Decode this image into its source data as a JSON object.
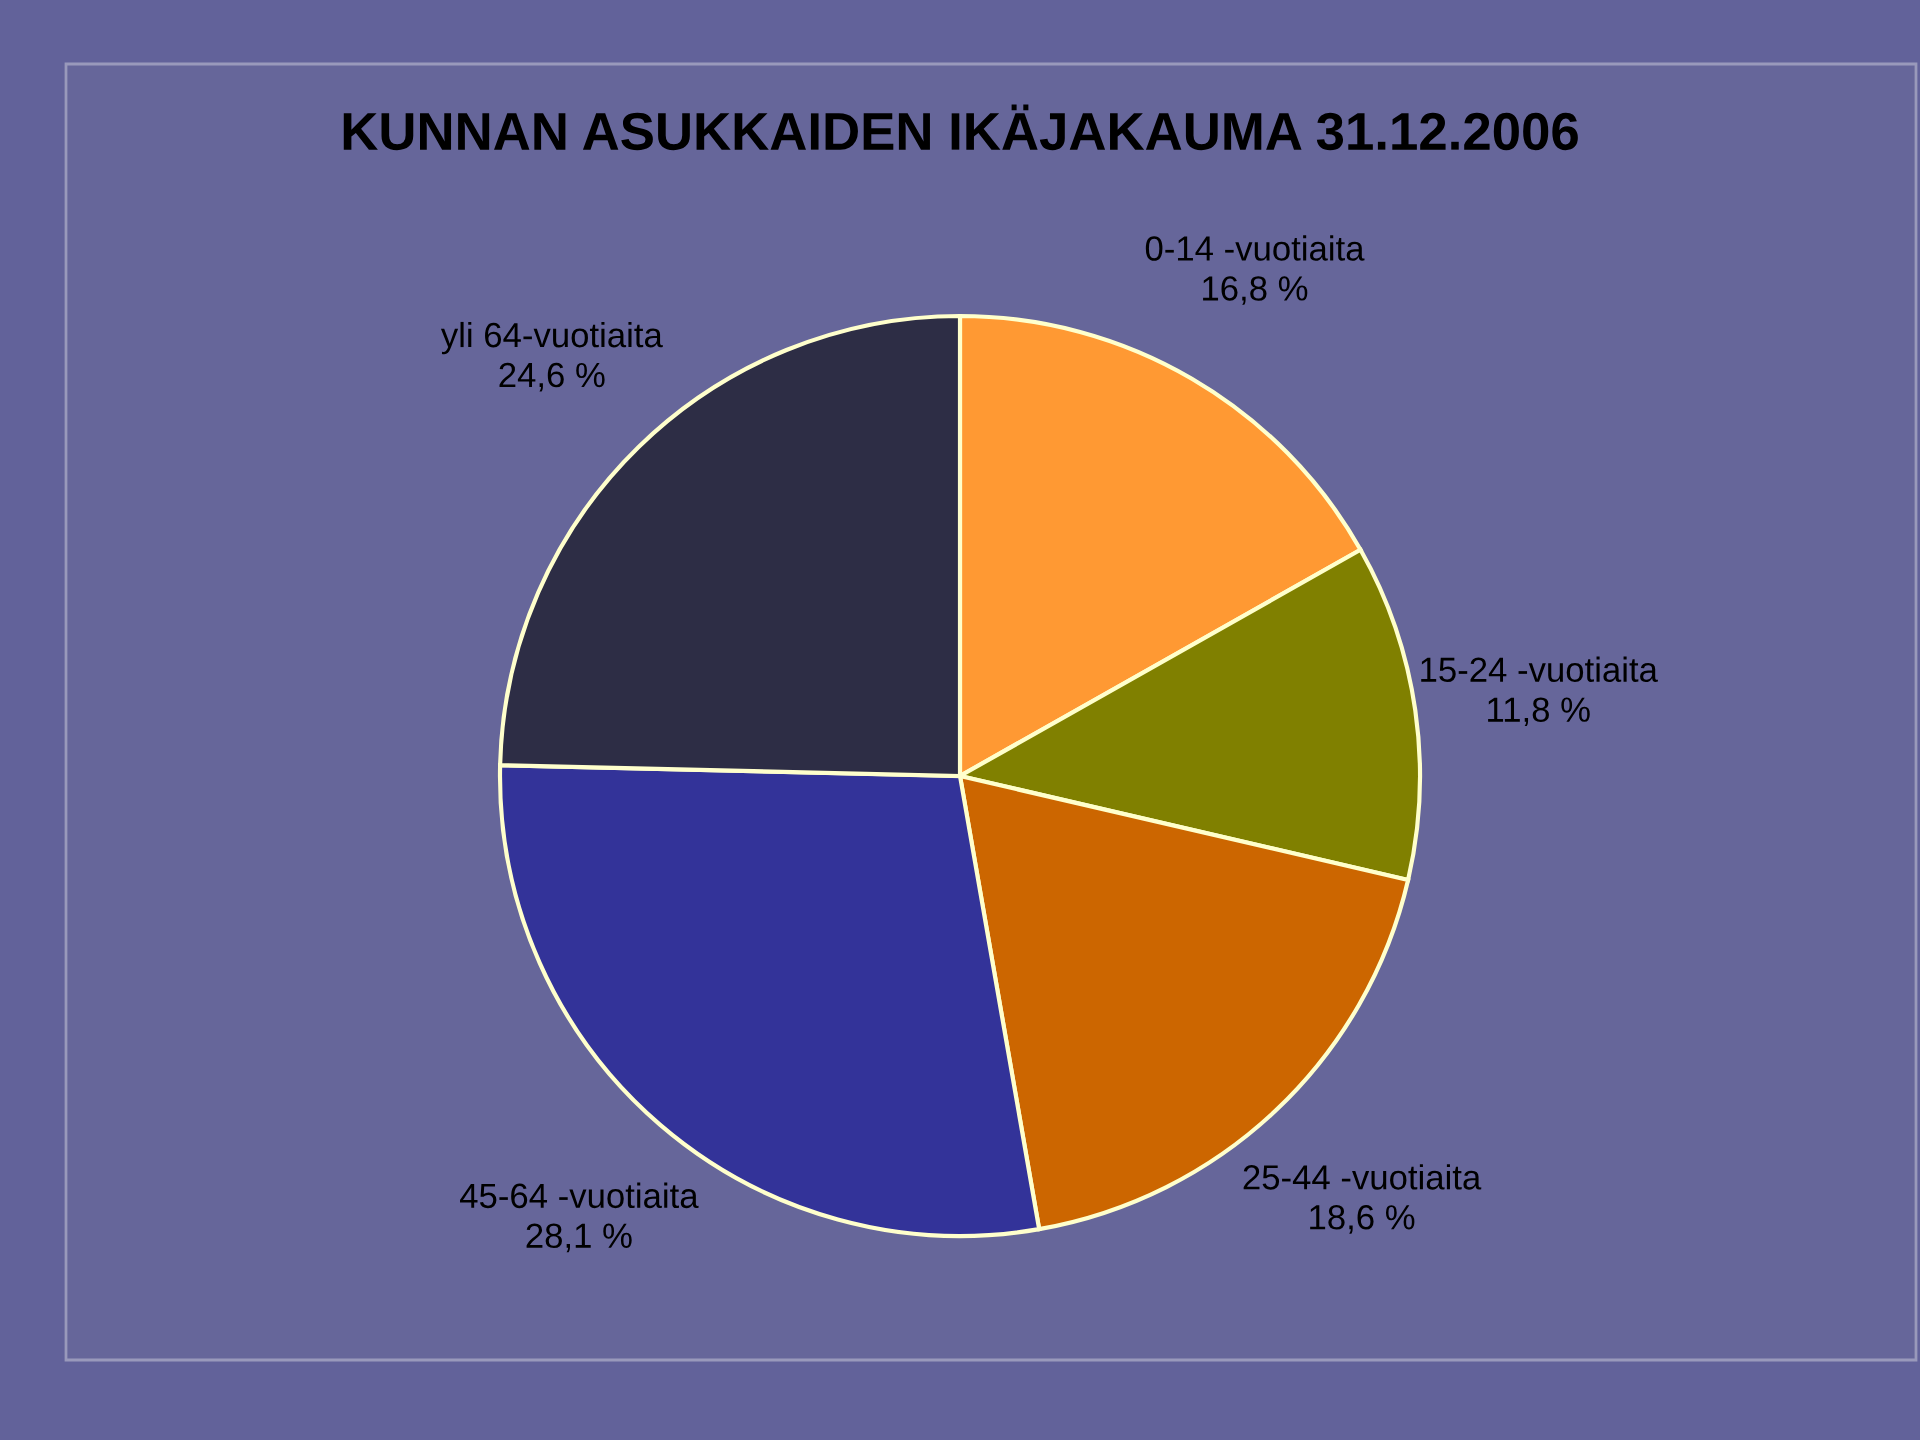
{
  "chart_data": {
    "type": "pie",
    "title": "KUNNAN ASUKKAIDEN IKÄJAKAUMA 31.12.2006",
    "categories": [
      "0-14 -vuotiaita",
      "15-24 -vuotiaita",
      "25-44 -vuotiaita",
      "45-64 -vuotiaita",
      "yli 64-vuotiaita"
    ],
    "values": [
      16.8,
      11.8,
      18.6,
      28.1,
      24.6
    ],
    "value_labels": [
      "16,8 %",
      "11,8 %",
      "18,6 %",
      "28,1 %",
      "24,6 %"
    ],
    "colors": [
      "#ff9933",
      "#808000",
      "#cc6600",
      "#333399",
      "#2d2d45"
    ],
    "legend": false
  }
}
